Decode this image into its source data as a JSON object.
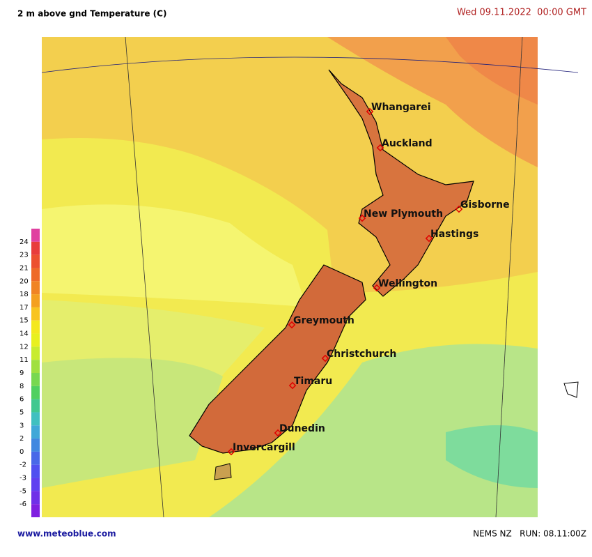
{
  "header": {
    "title": "2 m above gnd Temperature (C)",
    "datetime": "Wed 09.11.2022  00:00 GMT"
  },
  "cities": [
    {
      "name": "Whangarei"
    },
    {
      "name": "Auckland"
    },
    {
      "name": "Gisborne"
    },
    {
      "name": "New Plymouth"
    },
    {
      "name": "Hastings"
    },
    {
      "name": "Wellington"
    },
    {
      "name": "Greymouth"
    },
    {
      "name": "Christchurch"
    },
    {
      "name": "Timaru"
    },
    {
      "name": "Dunedin"
    },
    {
      "name": "Invercargill"
    }
  ],
  "legend": {
    "labels": [
      24,
      23,
      21,
      20,
      18,
      17,
      15,
      14,
      12,
      11,
      9,
      8,
      6,
      5,
      3,
      2,
      0,
      -2,
      -3,
      -5,
      -6
    ]
  },
  "footer": {
    "source": "www.meteoblue.com",
    "run": "NEMS NZ   RUN: 08.11:00Z"
  }
}
